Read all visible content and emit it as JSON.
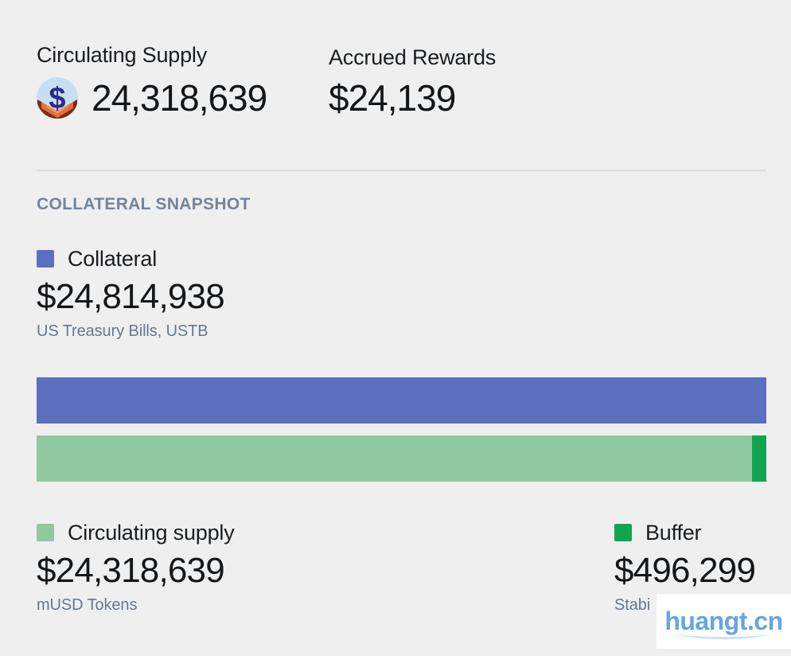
{
  "stats": {
    "circulating_supply": {
      "label": "Circulating Supply",
      "value": "24,318,639",
      "icon": "coin-in-hands-icon"
    },
    "accrued_rewards": {
      "label": "Accrued Rewards",
      "value": "$24,139"
    }
  },
  "section": {
    "title": "COLLATERAL SNAPSHOT"
  },
  "legend": {
    "collateral": {
      "label": "Collateral",
      "value": "$24,814,938",
      "sublabel": "US Treasury Bills, USTB",
      "color": "#5c6fbe"
    },
    "circulating_supply": {
      "label": "Circulating supply",
      "value": "$24,318,639",
      "sublabel": "mUSD Tokens",
      "color": "#90c9a0"
    },
    "buffer": {
      "label": "Buffer",
      "value": "$496,299",
      "sublabel": "Stabi",
      "color": "#13a452"
    }
  },
  "chart_data": {
    "type": "bar",
    "orientation": "horizontal",
    "title": "COLLATERAL SNAPSHOT",
    "grid": false,
    "legend_position": "above and below bars",
    "xlim": [
      0,
      24814938
    ],
    "total": 24814938,
    "bars": [
      {
        "name": "Collateral",
        "segments": [
          {
            "label": "Collateral",
            "value": 24814938,
            "pct": 100,
            "color": "#5c6fbe"
          }
        ]
      },
      {
        "name": "Circulating supply + Buffer",
        "segments": [
          {
            "label": "Circulating supply",
            "value": 24318639,
            "pct": 98,
            "color": "#90c9a0"
          },
          {
            "label": "Buffer",
            "value": 496299,
            "pct": 2,
            "color": "#13a452"
          }
        ]
      }
    ]
  },
  "colors": {
    "background": "#efeff0",
    "text_dark": "#17191b",
    "text_slate": "#66788e",
    "section_title": "#73849c",
    "divider": "#dbdce1",
    "coin_circle": "#c7dff4",
    "coin_dollar": "#2b2a8e",
    "coin_hands_dark": "#7e2a10",
    "coin_hands_orange": "#e0713a"
  },
  "watermark": {
    "text": "huangt.cn",
    "color": "#66a5e6",
    "swoosh_color": "#c9e1f6"
  }
}
